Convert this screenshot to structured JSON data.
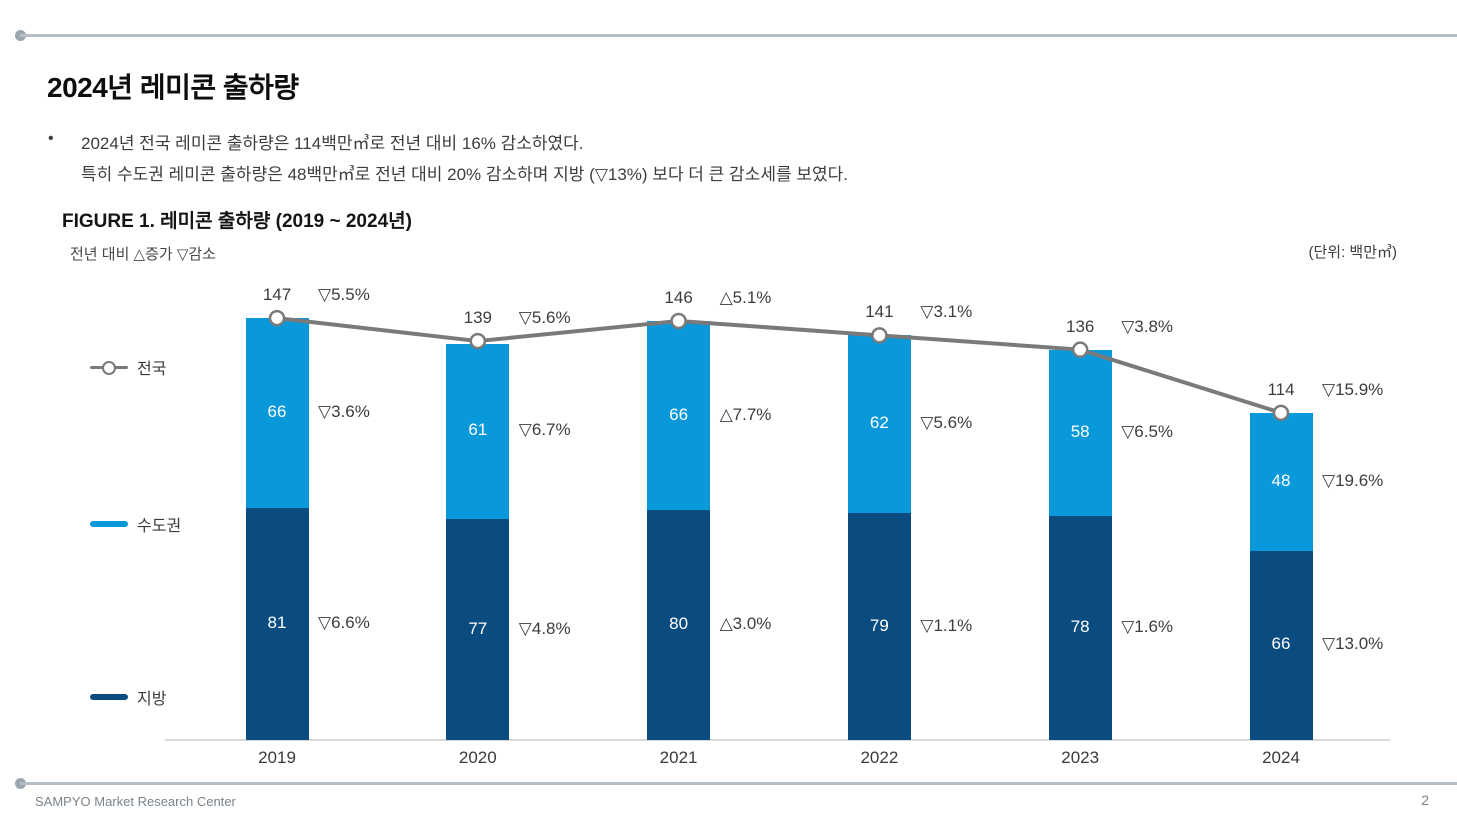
{
  "slide": {
    "title": "2024년 레미콘 출하량",
    "bullet_marker": "•",
    "bullet_line1": "2024년 전국 레미콘 출하량은 114백만㎥로 전년 대비 16% 감소하였다.",
    "bullet_line2": "특히 수도권 레미콘 출하량은 48백만㎥로 전년 대비 20% 감소하며 지방 (▽13%) 보다 더 큰 감소세를 보였다.",
    "footer_left": "SAMPYO Market Research Center",
    "page_number": "2"
  },
  "figure": {
    "title": "FIGURE 1. 레미콘 출하량 (2019 ~ 2024년)",
    "note": "전년 대비 △증가 ▽감소",
    "unit_label": "(단위: 백만㎥)"
  },
  "chart_data": {
    "type": "bar",
    "subtype": "stacked-bars-with-total-line",
    "title": "레미콘 출하량 (2019 ~ 2024년)",
    "unit": "백만㎥",
    "categories": [
      "2019",
      "2020",
      "2021",
      "2022",
      "2023",
      "2024"
    ],
    "series": [
      {
        "name": "지방",
        "role": "bar-segment-bottom",
        "color": "#0B4C80",
        "values": [
          81,
          77,
          80,
          79,
          78,
          66
        ],
        "pct_labels": [
          "▽6.6%",
          "▽4.8%",
          "△3.0%",
          "▽1.1%",
          "▽1.6%",
          "▽13.0%"
        ]
      },
      {
        "name": "수도권",
        "role": "bar-segment-top",
        "color": "#0999DA",
        "values": [
          66,
          61,
          66,
          62,
          58,
          48
        ],
        "pct_labels": [
          "▽3.6%",
          "▽6.7%",
          "△7.7%",
          "▽5.6%",
          "▽6.5%",
          "▽19.6%"
        ]
      },
      {
        "name": "전국",
        "role": "line",
        "color": "#7A7A7A",
        "marker": "white-circle",
        "values": [
          147,
          139,
          146,
          141,
          136,
          114
        ],
        "pct_labels": [
          "▽5.5%",
          "▽5.6%",
          "△5.1%",
          "▽3.1%",
          "▽3.8%",
          "▽15.9%"
        ]
      }
    ],
    "ylim": [
      0,
      160
    ],
    "grid": false,
    "legend_position": "left"
  },
  "colors": {
    "regional_bar": "#0B4C80",
    "metropolitan_bar": "#0999DA",
    "national_line": "#7A7A7A",
    "axis_line": "#D9D9D9",
    "rule_line": "#B7BEC5",
    "rule_dot": "#9CA6AE",
    "text_dark": "#3D3D3D",
    "footer_text": "#79838B"
  }
}
